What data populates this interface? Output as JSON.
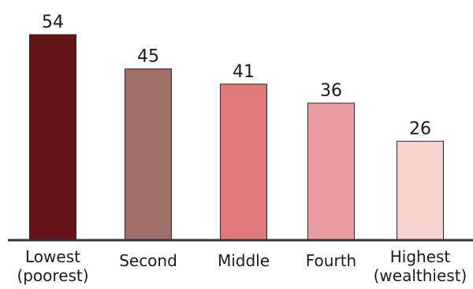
{
  "chart_data": {
    "type": "bar",
    "title": "",
    "xlabel": "",
    "ylabel": "",
    "categories": [
      [
        "Lowest",
        "(poorest)"
      ],
      [
        "Second"
      ],
      [
        "Middle"
      ],
      [
        "Fourth"
      ],
      [
        "Highest",
        "(wealthiest)"
      ]
    ],
    "values": [
      54,
      45,
      41,
      36,
      26
    ],
    "ylim": [
      0,
      54
    ],
    "grid": false,
    "legend": "none",
    "colors": [
      "#661317",
      "#a07068",
      "#e07a7c",
      "#eb9c9e",
      "#f6d2cf"
    ]
  }
}
